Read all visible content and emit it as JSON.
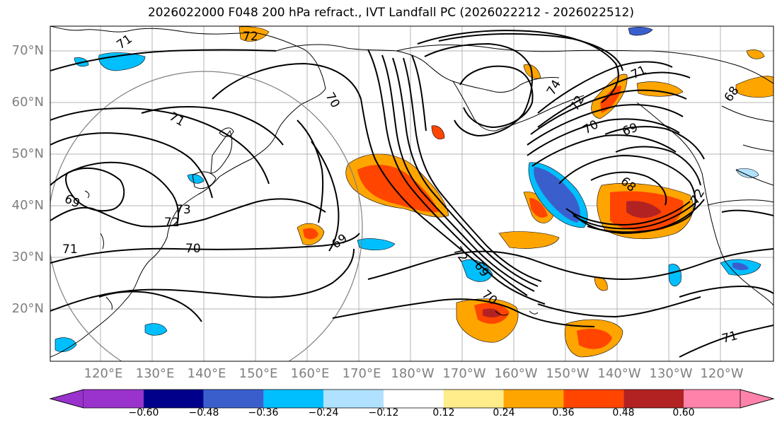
{
  "title": "2026022000 F048 200 hPa refract., IVT Landfall PC (2026022212 - 2026022512)",
  "lat_labels": [
    "70°N",
    "60°N",
    "50°N",
    "40°N",
    "30°N",
    "20°N"
  ],
  "lon_labels": [
    "120°E",
    "130°E",
    "140°E",
    "150°E",
    "160°E",
    "170°E",
    "180°W",
    "170°W",
    "160°W",
    "150°W",
    "140°W",
    "130°W",
    "120°W"
  ],
  "contour_labels": [
    "71",
    "72",
    "71",
    "69",
    "73",
    "72",
    "70",
    "71",
    "69",
    "70",
    "70",
    "72",
    "69",
    "72",
    "70",
    "68",
    "71",
    "68",
    "71",
    "72",
    "74",
    "69"
  ],
  "colorbar": {
    "colors": [
      "#9a32cd",
      "#00008b",
      "#3a5fcd",
      "#00bfff",
      "#b0e2ff",
      "#ffffff",
      "#ffec8b",
      "#ffa500",
      "#ff4500",
      "#b22222",
      "#ff82ab"
    ],
    "tick_labels": [
      "−0.60",
      "−0.48",
      "−0.36",
      "−0.24",
      "−0.12",
      "0.12",
      "0.24",
      "0.36",
      "0.48",
      "0.60"
    ]
  },
  "map_colors": {
    "land_line": "#000000",
    "grid": "#b5b5b5",
    "circle": "#808080"
  }
}
